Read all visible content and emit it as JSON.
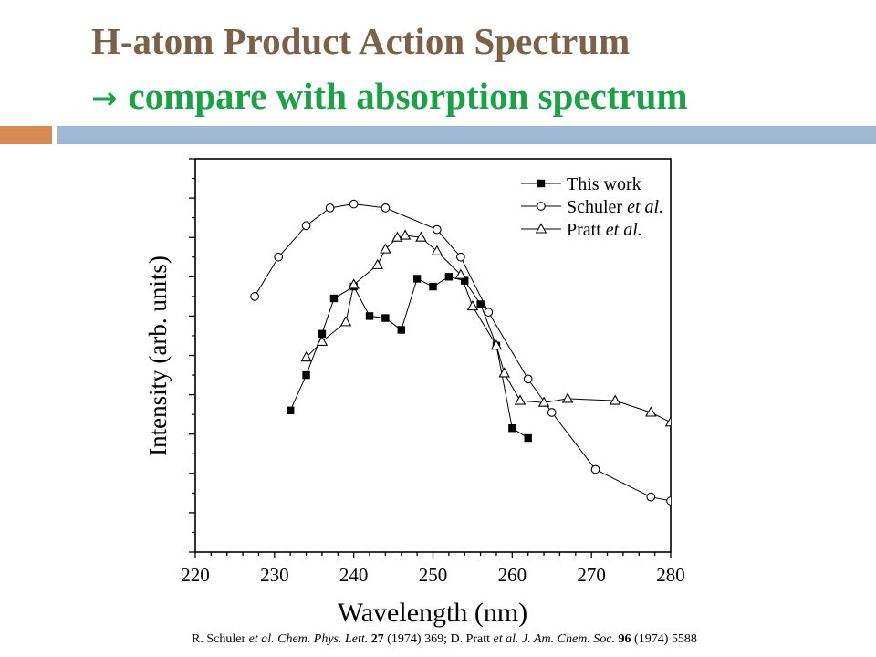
{
  "header": {
    "title_line1": "H-atom Product Action Spectrum",
    "title_line2": "compare with absorption spectrum",
    "arrow_glyph": "→",
    "title_color": "#7a6148",
    "subtitle_color": "#1aa247",
    "bar_left_color": "#d98a52",
    "bar_right_color": "#9fb8d6"
  },
  "chart_data": {
    "type": "scatter",
    "xlabel": "Wavelength (nm)",
    "ylabel": "Intensity (arb. units)",
    "xlim": [
      220,
      280
    ],
    "x_ticks": [
      220,
      230,
      240,
      250,
      260,
      270,
      280
    ],
    "y_tick_labels_shown": false,
    "ylim": [
      0,
      1
    ],
    "legend_position": "top-right",
    "grid": false,
    "series": [
      {
        "name": "This work",
        "name_suffix": "",
        "marker": "filled-square",
        "x": [
          232,
          234,
          236,
          237.5,
          240,
          242,
          244,
          246,
          248,
          250,
          252,
          254,
          256,
          258,
          260,
          262
        ],
        "y": [
          0.36,
          0.45,
          0.555,
          0.645,
          0.675,
          0.6,
          0.595,
          0.565,
          0.695,
          0.675,
          0.7,
          0.69,
          0.63,
          0.525,
          0.315,
          0.29
        ]
      },
      {
        "name": "Schuler ",
        "name_suffix": "et al.",
        "marker": "open-circle",
        "x": [
          227.5,
          230.5,
          234,
          237,
          240,
          244,
          250.5,
          253.5,
          257,
          262,
          265,
          270.5,
          277.5,
          280
        ],
        "y": [
          0.65,
          0.75,
          0.83,
          0.875,
          0.885,
          0.875,
          0.82,
          0.75,
          0.61,
          0.44,
          0.355,
          0.21,
          0.14,
          0.13
        ]
      },
      {
        "name": "Pratt ",
        "name_suffix": "et al.",
        "marker": "open-triangle",
        "x": [
          234,
          236,
          239,
          240,
          243,
          244,
          245.5,
          246.5,
          248.5,
          250.5,
          253.5,
          255,
          258,
          259,
          261,
          264,
          267,
          273,
          277.5,
          280
        ],
        "y": [
          0.495,
          0.535,
          0.585,
          0.68,
          0.73,
          0.77,
          0.8,
          0.805,
          0.8,
          0.765,
          0.705,
          0.625,
          0.525,
          0.455,
          0.385,
          0.38,
          0.39,
          0.385,
          0.355,
          0.33
        ]
      }
    ]
  },
  "citation": {
    "p1": "R. Schuler ",
    "p2": "et al. Chem. Phys. Lett.",
    "p3": " ",
    "p4": "27",
    "p5": " (1974) 369; D. Pratt ",
    "p6": "et al. J. Am. Chem. Soc.",
    "p7": " ",
    "p8": "96",
    "p9": " (1974) 5588"
  }
}
